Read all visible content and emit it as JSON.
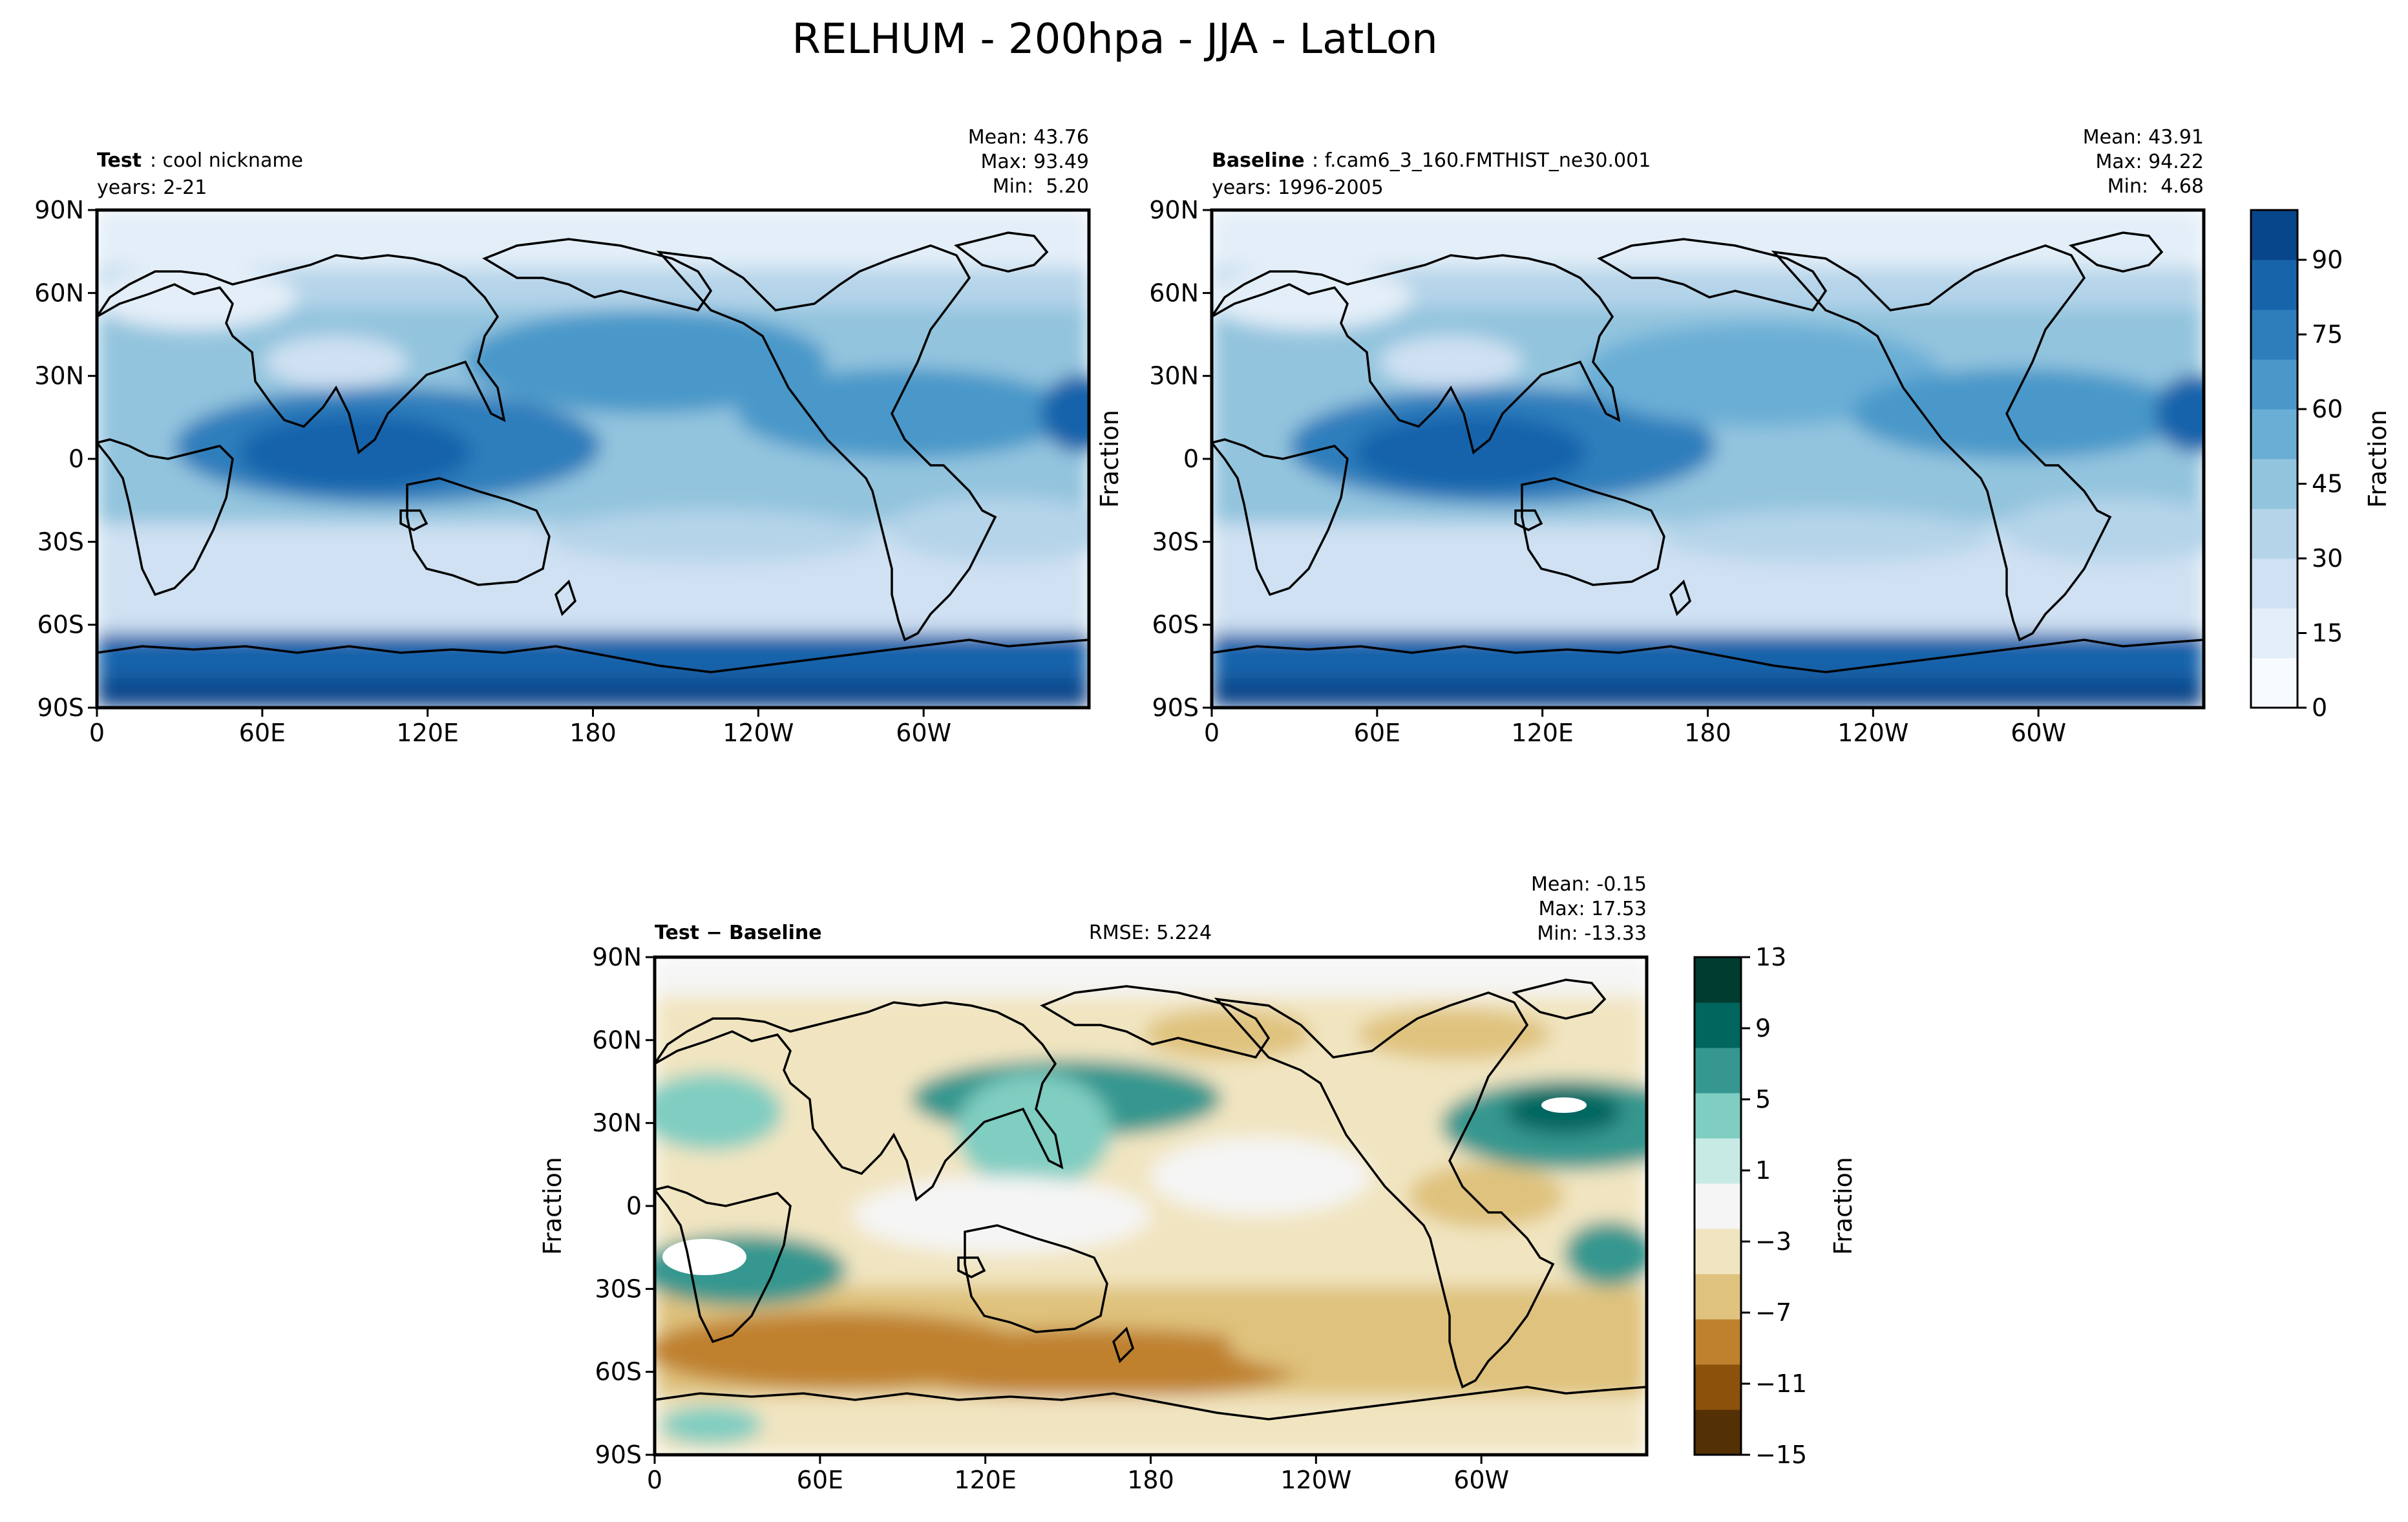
{
  "figure": {
    "title": "RELHUM - 200hpa - JJA - LatLon"
  },
  "colors": {
    "blues": [
      "#f7fbff",
      "#e3eef8",
      "#cfe1f2",
      "#b5d4e9",
      "#93c4de",
      "#6aaed6",
      "#4a98c9",
      "#2e7ebc",
      "#1764ab",
      "#08468b"
    ],
    "diverging": [
      "#543005",
      "#8c510a",
      "#bf812d",
      "#dfc27d",
      "#f1e5c1",
      "#f5f5f5",
      "#c7eae5",
      "#80cdc1",
      "#35978f",
      "#01665e",
      "#003c30"
    ],
    "land_outline": "#000000"
  },
  "chart_data": [
    {
      "type": "heatmap",
      "panel": "test",
      "title_bold": "Test",
      "title_rest": ": cool nickname",
      "years_label": "years: 2-21",
      "stats": {
        "mean": "Mean: 43.76",
        "max": "Max: 93.49",
        "min": "Min:  5.20"
      },
      "xticks": [
        "0",
        "60E",
        "120E",
        "180",
        "120W",
        "60W"
      ],
      "yticks": [
        "90N",
        "60N",
        "30N",
        "0",
        "30S",
        "60S",
        "90S"
      ],
      "ylabel": "",
      "xlim": [
        0,
        360
      ],
      "ylim": [
        -90,
        90
      ],
      "value_range": [
        0,
        100
      ]
    },
    {
      "type": "heatmap",
      "panel": "baseline",
      "title_bold": "Baseline",
      "title_rest": ": f.cam6_3_160.FMTHIST_ne30.001",
      "years_label": "years: 1996-2005",
      "stats": {
        "mean": "Mean: 43.91",
        "max": "Max: 94.22",
        "min": "Min:  4.68"
      },
      "xticks": [
        "0",
        "60E",
        "120E",
        "180",
        "120W",
        "60W"
      ],
      "yticks": [
        "90N",
        "60N",
        "30N",
        "0",
        "30S",
        "60S",
        "90S"
      ],
      "ylabel": "Fraction",
      "xlim": [
        0,
        360
      ],
      "ylim": [
        -90,
        90
      ],
      "value_range": [
        0,
        100
      ],
      "colorbar": {
        "ticks": [
          "0",
          "15",
          "30",
          "45",
          "60",
          "75",
          "90"
        ],
        "tick_values": [
          0,
          15,
          30,
          45,
          60,
          75,
          90
        ],
        "range": [
          0,
          100
        ],
        "label": "Fraction"
      }
    },
    {
      "type": "heatmap",
      "panel": "difference",
      "title_bold": "Test − Baseline",
      "rmse": "RMSE: 5.224",
      "stats": {
        "mean": "Mean: -0.15",
        "max": "Max: 17.53",
        "min": "Min: -13.33"
      },
      "xticks": [
        "0",
        "60E",
        "120E",
        "180",
        "120W",
        "60W"
      ],
      "yticks": [
        "90N",
        "60N",
        "30N",
        "0",
        "30S",
        "60S",
        "90S"
      ],
      "ylabel": "Fraction",
      "xlim": [
        0,
        360
      ],
      "ylim": [
        -90,
        90
      ],
      "value_range": [
        -15,
        13
      ],
      "colorbar": {
        "ticks": [
          "13",
          "9",
          "5",
          "1",
          "−3",
          "−7",
          "−11",
          "−15"
        ],
        "tick_values": [
          13,
          9,
          5,
          1,
          -3,
          -7,
          -11,
          -15
        ],
        "range": [
          -15,
          13
        ],
        "label": "Fraction"
      }
    }
  ]
}
